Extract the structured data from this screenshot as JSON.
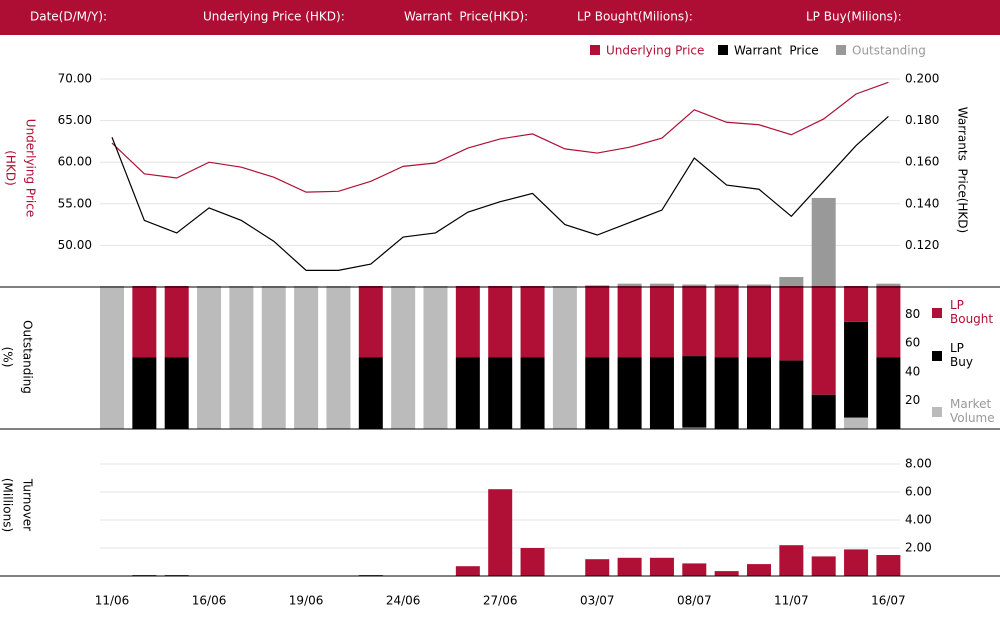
{
  "header": {
    "fields": [
      "Date(D/M/Y):",
      "Underlying Price (HKD):",
      "Warrant  Price(HKD):",
      "LP Bought(Milions):",
      "LP Buy(Milions):"
    ]
  },
  "chart_data": [
    {
      "type": "line",
      "ylabel": [
        "Underlying Price",
        "(HKD)"
      ],
      "y2label": [
        "Warrants  Price(HKD)"
      ],
      "categories": [
        "11/06",
        null,
        null,
        "16/06",
        null,
        null,
        "19/06",
        null,
        null,
        "24/06",
        null,
        null,
        "27/06",
        null,
        null,
        "03/07",
        null,
        null,
        "08/07",
        null,
        null,
        "11/07",
        null,
        null,
        "16/07"
      ],
      "ylim": [
        45,
        70
      ],
      "yticks": [
        {
          "value": 50,
          "label": "50.00"
        },
        {
          "value": 55,
          "label": "55.00"
        },
        {
          "value": 60,
          "label": "60.00"
        },
        {
          "value": 65,
          "label": "65.00"
        },
        {
          "value": 70,
          "label": "70.00"
        }
      ],
      "y2lim": [
        0.1,
        0.2
      ],
      "y2ticks": [
        {
          "value": 0.12,
          "label": "0.120"
        },
        {
          "value": 0.14,
          "label": "0.140"
        },
        {
          "value": 0.16,
          "label": "0.160"
        },
        {
          "value": 0.18,
          "label": "0.180"
        },
        {
          "value": 0.2,
          "label": "0.200"
        }
      ],
      "grid": true,
      "series": [
        {
          "name": "Underlying Price",
          "color": "#b01035",
          "kind": "line",
          "values": [
            62.3,
            58.6,
            58.1,
            60.0,
            59.4,
            58.2,
            56.4,
            56.5,
            57.7,
            59.5,
            59.9,
            61.7,
            62.8,
            63.4,
            61.6,
            61.1,
            61.8,
            62.9,
            66.3,
            64.8,
            64.5,
            63.3,
            65.2,
            68.2,
            69.6
          ]
        },
        {
          "name": "Warrant  Price",
          "color": "#000000",
          "kind": "line",
          "axis": "y2",
          "values": [
            0.172,
            0.132,
            0.126,
            0.138,
            0.132,
            0.122,
            0.108,
            0.108,
            0.111,
            0.124,
            0.126,
            0.136,
            0.141,
            0.145,
            0.13,
            0.125,
            0.131,
            0.137,
            0.162,
            0.149,
            0.147,
            0.134,
            0.151,
            0.168,
            0.182
          ]
        },
        {
          "name": "Outstanding",
          "color": "#999999",
          "kind": "bar",
          "values": [
            45,
            45,
            45,
            45,
            45,
            45,
            45,
            45,
            45,
            45,
            45,
            45,
            45,
            45,
            45,
            45.2,
            45.4,
            45.4,
            45.3,
            45.3,
            45.3,
            46.2,
            55.7,
            45,
            45.4
          ]
        }
      ]
    },
    {
      "type": "stacked_bar",
      "ylabel": [
        "Outstanding",
        "(%)"
      ],
      "ylim": [
        0,
        100
      ],
      "yticks": [
        20,
        40,
        60,
        80
      ],
      "series": [
        {
          "name": "Market Volume",
          "color": "#bbbbbb",
          "values": [
            100,
            0,
            0,
            100,
            100,
            100,
            100,
            100,
            0,
            100,
            100,
            0,
            0,
            0,
            100,
            0,
            0,
            0,
            1,
            0,
            0,
            0,
            0,
            8,
            0
          ]
        },
        {
          "name": "LP Buy",
          "color": "#000000",
          "values": [
            0,
            50,
            50,
            0,
            0,
            0,
            0,
            0,
            50,
            0,
            0,
            50,
            50,
            50,
            0,
            50,
            50,
            50,
            50,
            50,
            50,
            48,
            24,
            67,
            50
          ]
        },
        {
          "name": "LP Bought",
          "color": "#b01035",
          "values": [
            0,
            50,
            50,
            0,
            0,
            0,
            0,
            0,
            50,
            0,
            0,
            50,
            50,
            50,
            0,
            50,
            50,
            50,
            49,
            50,
            50,
            52,
            76,
            25,
            50
          ]
        }
      ]
    },
    {
      "type": "bar",
      "ylabel": [
        "Turnover",
        "(Millions)"
      ],
      "ylim": [
        0,
        8
      ],
      "yticks": [
        {
          "value": 2,
          "label": "2.00"
        },
        {
          "value": 4,
          "label": "4.00"
        },
        {
          "value": 6,
          "label": "6.00"
        },
        {
          "value": 8,
          "label": "8.00"
        }
      ],
      "grid": true,
      "color": "#b01035",
      "values": [
        0,
        0.07,
        0.07,
        0,
        0,
        0,
        0,
        0,
        0.07,
        0,
        0,
        0.7,
        6.2,
        2.0,
        0,
        1.2,
        1.3,
        1.3,
        0.9,
        0.35,
        0.85,
        2.2,
        1.4,
        1.9,
        1.5
      ]
    }
  ]
}
